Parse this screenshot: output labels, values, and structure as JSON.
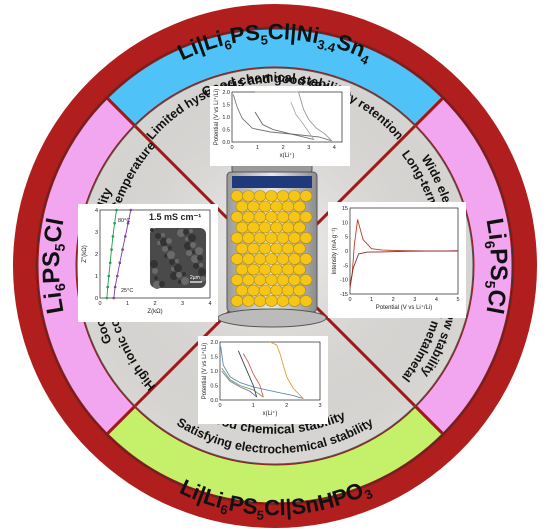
{
  "colors": {
    "ring_top": "#4FC3F7",
    "ring_right": "#F3A6F0",
    "ring_bottom": "#C5F06A",
    "ring_left": "#F3A6F0",
    "ring_divider": "#A01818",
    "inner_bg": "#EFEDEA",
    "highlight": "#E0262E"
  },
  "ring": {
    "top": {
      "main": "Li|Li",
      "sub1": "6",
      "mid1": "PS",
      "sub2": "5",
      "mid2": "Cl|Ni",
      "sub3": "3.4",
      "mid3": "Sn",
      "sub4": "4"
    },
    "right": {
      "main": "Li",
      "sub1": "6",
      "mid1": "PS",
      "sub2": "5",
      "end": "Cl"
    },
    "bottom": {
      "main": "Li|Li",
      "sub1": "6",
      "mid1": "PS",
      "sub2": "5",
      "mid2": "Cl|SnHPO",
      "sub3": "3"
    },
    "left": {
      "main": "Li",
      "sub1": "6",
      "mid1": "PS",
      "sub2": "5",
      "end": "Cl"
    }
  },
  "phrases": {
    "top_1": "Good chemical stability",
    "top_2": "Limited hysteresis and good capacity retention",
    "right_1": "Wide electrochemical window stability",
    "right_2": "Long-term stability toward Li metalmetal",
    "bottom_1": "Good chemical stability",
    "bottom_2": "Satisfying electrochemical stability",
    "left_1": "Good mechanical ductility",
    "left_2": "High ionic conductivity at room temperature"
  },
  "chart_data": [
    {
      "type": "line",
      "title": "",
      "xlabel": "x(Li⁺)",
      "ylabel": "Potential (V vs Li⁺/Li)",
      "xlim": [
        0,
        4.3
      ],
      "ylim": [
        0,
        2.0
      ],
      "xticks": [
        "0",
        "1",
        "2",
        "3",
        "4"
      ],
      "yticks": [
        "0.0",
        "0.5",
        "1.0",
        "1.5",
        "2.0"
      ],
      "series": [
        {
          "x": [
            0.05,
            0.2,
            0.4,
            0.8,
            1.5,
            2.5,
            3.4,
            3.9
          ],
          "y": [
            1.9,
            1.4,
            0.95,
            0.55,
            0.4,
            0.3,
            0.2,
            0.05
          ]
        },
        {
          "x": [
            3.9,
            3.6,
            3.3,
            3.0,
            2.8,
            2.6,
            1.2,
            0.9
          ],
          "y": [
            0.05,
            0.35,
            0.55,
            0.9,
            1.3,
            2.0,
            2.0,
            2.0
          ]
        },
        {
          "x": [
            0.9,
            1.2,
            1.6,
            2.2,
            2.8,
            3.2
          ],
          "y": [
            1.2,
            0.7,
            0.5,
            0.35,
            0.2,
            0.1
          ]
        },
        {
          "x": [
            3.2,
            3.0,
            2.8,
            2.5,
            2.3
          ],
          "y": [
            0.1,
            0.4,
            0.7,
            1.1,
            1.6
          ]
        }
      ]
    },
    {
      "type": "line",
      "title": "",
      "xlabel": "Potential (V vs Li⁺/Li)",
      "ylabel": "Intensity (mA g⁻¹)",
      "xlim": [
        0,
        5
      ],
      "ylim": [
        -15,
        15
      ],
      "xticks": [
        "0",
        "1",
        "2",
        "3",
        "4",
        "5"
      ],
      "yticks": [
        "-15",
        "-10",
        "-5",
        "0",
        "5",
        "10",
        "15"
      ],
      "series": [
        {
          "x": [
            0,
            0.1,
            0.2,
            0.35,
            0.6,
            1.0,
            1.5,
            2.5,
            3.5,
            4.5,
            5.0
          ],
          "y": [
            -13,
            -8,
            2,
            11,
            4,
            0.8,
            0.3,
            0.1,
            0.05,
            0.05,
            0.1
          ]
        },
        {
          "x": [
            0,
            0.15,
            0.4,
            0.8,
            1.5,
            2.5,
            3.5,
            4.5,
            5.0
          ],
          "y": [
            -12,
            -6,
            -1,
            -0.4,
            -0.3,
            -0.1,
            0,
            0,
            0
          ]
        }
      ]
    },
    {
      "type": "line",
      "title": "",
      "xlabel": "Z(kΩ)",
      "ylabel": "Z''(kΩ)",
      "annotations": [
        "80°C",
        "25°C",
        "1.5 mS cm⁻¹",
        "2µm"
      ],
      "xlim": [
        0,
        4
      ],
      "ylim": [
        0,
        4
      ],
      "xticks": [
        "0",
        "1",
        "2",
        "3",
        "4"
      ],
      "yticks": [
        "0",
        "1",
        "2",
        "3",
        "4"
      ],
      "series": [
        {
          "x": [
            0.25,
            0.28,
            0.32,
            0.37,
            0.42,
            0.47,
            0.53,
            0.6
          ],
          "y": [
            0.0,
            0.5,
            1.0,
            1.6,
            2.2,
            2.8,
            3.4,
            4.0
          ]
        },
        {
          "x": [
            0.5,
            0.55,
            0.63,
            0.72,
            0.82,
            0.92,
            1.02,
            1.12
          ],
          "y": [
            0.0,
            0.5,
            1.0,
            1.6,
            2.2,
            2.8,
            3.4,
            4.0
          ]
        }
      ]
    },
    {
      "type": "line",
      "title": "",
      "xlabel": "x(Li⁺)",
      "ylabel": "Potential (V vs Li⁺/Li)",
      "xlim": [
        0,
        3
      ],
      "ylim": [
        0,
        2.0
      ],
      "xticks": [
        "0",
        "1",
        "2",
        "3"
      ],
      "yticks": [
        "0.0",
        "0.5",
        "1.0",
        "1.5",
        "2.0"
      ],
      "series": [
        {
          "x": [
            0.02,
            0.1,
            0.3,
            0.6,
            1.0,
            1.4,
            1.8,
            2.2,
            2.5
          ],
          "y": [
            1.85,
            1.2,
            0.8,
            0.6,
            0.45,
            0.35,
            0.25,
            0.15,
            0.05
          ]
        },
        {
          "x": [
            2.5,
            2.2,
            2.0,
            1.9,
            1.8,
            1.7,
            1.5
          ],
          "y": [
            0.05,
            0.4,
            0.8,
            1.2,
            1.6,
            1.9,
            2.0
          ]
        },
        {
          "x": [
            0.05,
            0.3,
            0.6,
            1.0,
            1.3
          ],
          "y": [
            1.1,
            0.7,
            0.5,
            0.35,
            0.1
          ]
        },
        {
          "x": [
            1.3,
            1.2,
            1.0,
            0.85,
            0.7
          ],
          "y": [
            0.1,
            0.5,
            0.9,
            1.3,
            1.6
          ]
        },
        {
          "x": [
            0.05,
            0.3,
            0.6,
            0.9,
            1.1
          ],
          "y": [
            1.0,
            0.65,
            0.45,
            0.3,
            0.1
          ]
        },
        {
          "x": [
            1.1,
            1.0,
            0.85,
            0.7,
            0.55
          ],
          "y": [
            0.1,
            0.5,
            0.9,
            1.3,
            1.7
          ]
        }
      ]
    }
  ]
}
